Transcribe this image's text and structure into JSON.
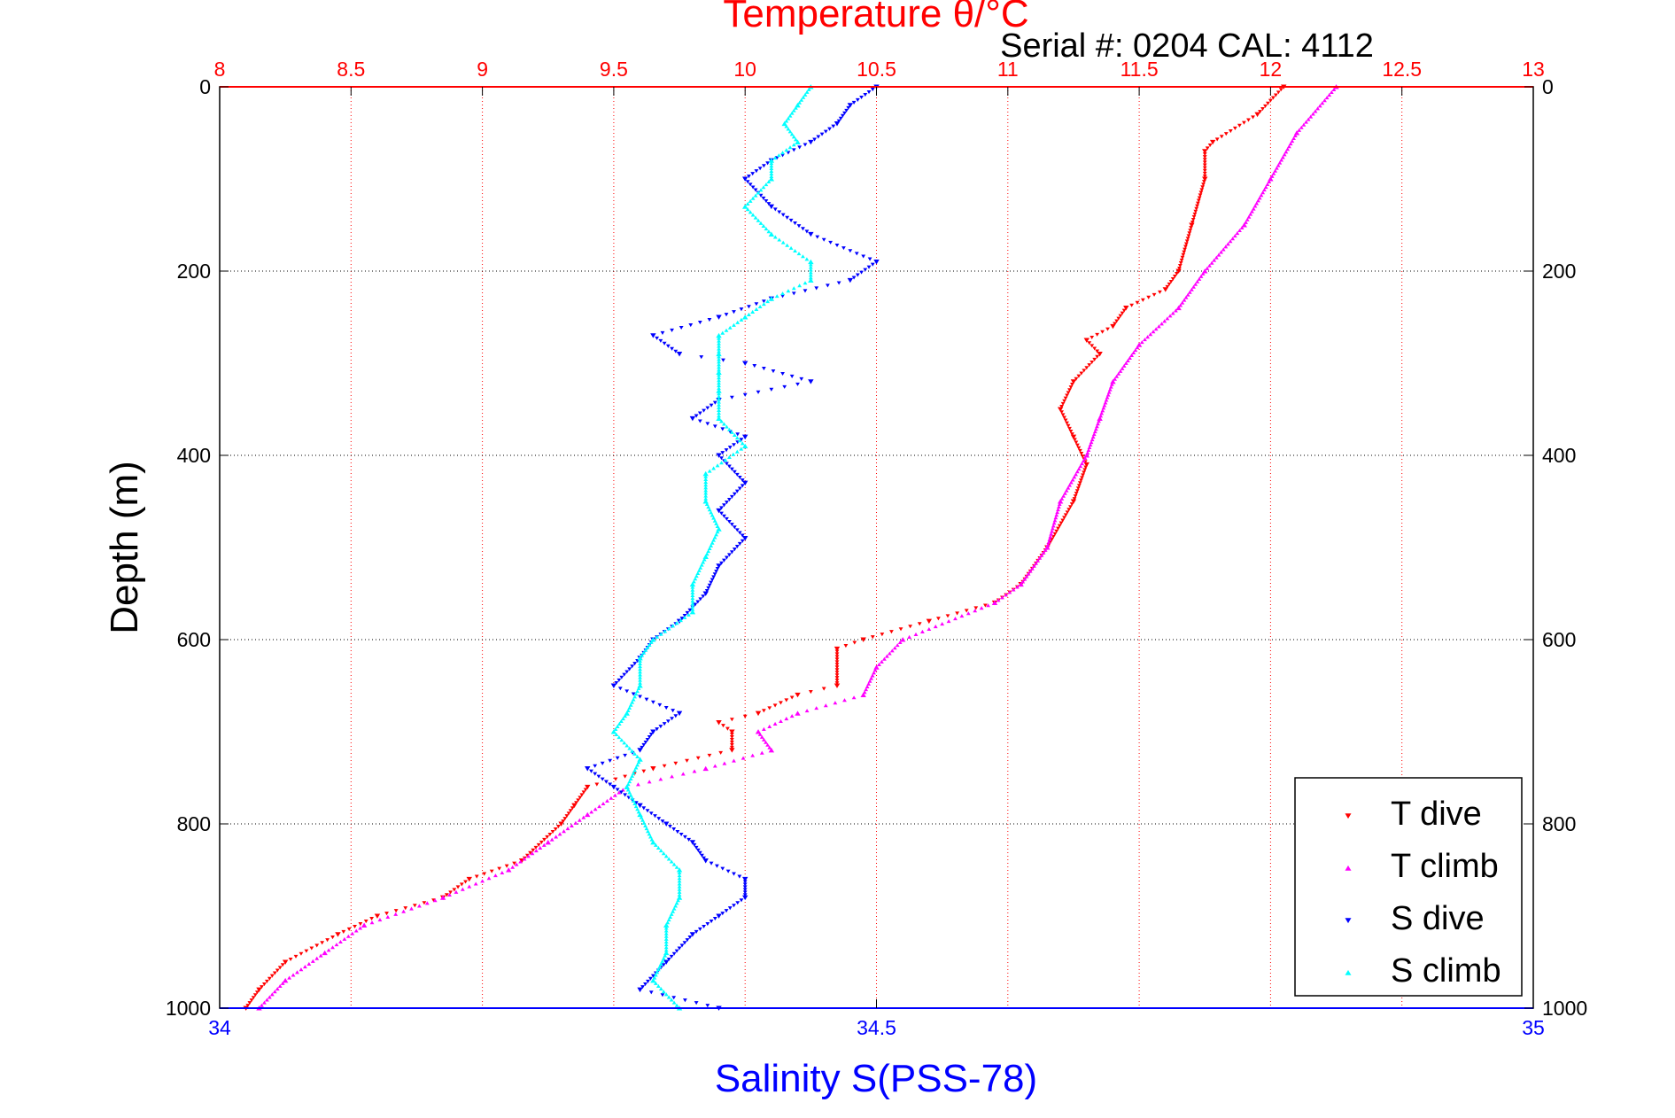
{
  "chart_data": {
    "type": "scatter",
    "title": "Temperature θ/°C",
    "subtitle": "Serial #: 0204  CAL: 4112",
    "ylabel": "Depth (m)",
    "xlabel": "Salinity S(PSS-78)",
    "top_axis": {
      "label": "Temperature θ/°C",
      "lim": [
        8,
        13
      ],
      "ticks": [
        "8",
        "8.5",
        "9",
        "9.5",
        "10",
        "10.5",
        "11",
        "11.5",
        "12",
        "12.5",
        "13"
      ],
      "color": "#ff0000"
    },
    "bottom_axis": {
      "label": "Salinity S(PSS-78)",
      "lim": [
        34,
        35
      ],
      "ticks": [
        "34",
        "34.5",
        "35"
      ],
      "color": "#0000ff"
    },
    "y_axis": {
      "lim": [
        0,
        1000
      ],
      "reversed": true,
      "left_ticks": [
        "0",
        "200",
        "400",
        "600",
        "800",
        "1000"
      ],
      "right_ticks": [
        "0",
        "200",
        "400",
        "600",
        "800",
        "1000"
      ]
    },
    "grid": true,
    "legend": {
      "placement": "bottom-right",
      "entries": [
        "T dive",
        "T climb",
        "S dive",
        "S climb"
      ]
    },
    "series": [
      {
        "name": "T dive",
        "axis": "temperature",
        "color": "#ff0000",
        "marker": "down-triangle",
        "points": [
          [
            0,
            12.05
          ],
          [
            30,
            11.95
          ],
          [
            60,
            11.78
          ],
          [
            70,
            11.75
          ],
          [
            100,
            11.75
          ],
          [
            150,
            11.7
          ],
          [
            200,
            11.65
          ],
          [
            220,
            11.6
          ],
          [
            240,
            11.45
          ],
          [
            260,
            11.4
          ],
          [
            275,
            11.3
          ],
          [
            290,
            11.35
          ],
          [
            320,
            11.25
          ],
          [
            350,
            11.2
          ],
          [
            380,
            11.25
          ],
          [
            410,
            11.3
          ],
          [
            450,
            11.25
          ],
          [
            500,
            11.15
          ],
          [
            540,
            11.05
          ],
          [
            560,
            10.95
          ],
          [
            580,
            10.7
          ],
          [
            600,
            10.45
          ],
          [
            610,
            10.35
          ],
          [
            650,
            10.35
          ],
          [
            660,
            10.2
          ],
          [
            680,
            10.05
          ],
          [
            690,
            9.9
          ],
          [
            700,
            9.95
          ],
          [
            720,
            9.95
          ],
          [
            740,
            9.65
          ],
          [
            760,
            9.4
          ],
          [
            780,
            9.35
          ],
          [
            800,
            9.3
          ],
          [
            840,
            9.15
          ],
          [
            860,
            8.95
          ],
          [
            880,
            8.85
          ],
          [
            900,
            8.6
          ],
          [
            920,
            8.45
          ],
          [
            950,
            8.25
          ],
          [
            980,
            8.15
          ],
          [
            1000,
            8.1
          ]
        ]
      },
      {
        "name": "T climb",
        "axis": "temperature",
        "color": "#ff00ff",
        "marker": "up-triangle",
        "points": [
          [
            0,
            12.25
          ],
          [
            50,
            12.1
          ],
          [
            100,
            12.0
          ],
          [
            150,
            11.9
          ],
          [
            200,
            11.75
          ],
          [
            240,
            11.65
          ],
          [
            280,
            11.5
          ],
          [
            320,
            11.4
          ],
          [
            360,
            11.35
          ],
          [
            400,
            11.3
          ],
          [
            450,
            11.2
          ],
          [
            500,
            11.15
          ],
          [
            540,
            11.05
          ],
          [
            560,
            10.95
          ],
          [
            600,
            10.6
          ],
          [
            630,
            10.5
          ],
          [
            660,
            10.45
          ],
          [
            680,
            10.2
          ],
          [
            700,
            10.05
          ],
          [
            720,
            10.1
          ],
          [
            740,
            9.85
          ],
          [
            760,
            9.55
          ],
          [
            790,
            9.4
          ],
          [
            820,
            9.25
          ],
          [
            850,
            9.1
          ],
          [
            880,
            8.85
          ],
          [
            910,
            8.55
          ],
          [
            940,
            8.4
          ],
          [
            970,
            8.25
          ],
          [
            1000,
            8.15
          ]
        ]
      },
      {
        "name": "S dive",
        "axis": "salinity",
        "color": "#0000ff",
        "marker": "down-triangle",
        "points": [
          [
            0,
            34.5
          ],
          [
            20,
            34.48
          ],
          [
            40,
            34.47
          ],
          [
            60,
            34.45
          ],
          [
            80,
            34.42
          ],
          [
            100,
            34.4
          ],
          [
            130,
            34.42
          ],
          [
            160,
            34.45
          ],
          [
            190,
            34.5
          ],
          [
            210,
            34.48
          ],
          [
            230,
            34.42
          ],
          [
            250,
            34.38
          ],
          [
            270,
            34.33
          ],
          [
            290,
            34.35
          ],
          [
            300,
            34.4
          ],
          [
            320,
            34.45
          ],
          [
            340,
            34.38
          ],
          [
            360,
            34.36
          ],
          [
            380,
            34.4
          ],
          [
            400,
            34.38
          ],
          [
            430,
            34.4
          ],
          [
            460,
            34.38
          ],
          [
            490,
            34.4
          ],
          [
            520,
            34.38
          ],
          [
            550,
            34.37
          ],
          [
            580,
            34.35
          ],
          [
            600,
            34.33
          ],
          [
            620,
            34.32
          ],
          [
            650,
            34.3
          ],
          [
            680,
            34.35
          ],
          [
            700,
            34.33
          ],
          [
            720,
            34.32
          ],
          [
            740,
            34.28
          ],
          [
            760,
            34.3
          ],
          [
            780,
            34.32
          ],
          [
            800,
            34.34
          ],
          [
            820,
            34.36
          ],
          [
            840,
            34.37
          ],
          [
            860,
            34.4
          ],
          [
            880,
            34.4
          ],
          [
            900,
            34.38
          ],
          [
            920,
            34.36
          ],
          [
            950,
            34.34
          ],
          [
            980,
            34.32
          ],
          [
            1000,
            34.38
          ]
        ]
      },
      {
        "name": "S climb",
        "axis": "salinity",
        "color": "#00ffff",
        "marker": "up-triangle",
        "points": [
          [
            0,
            34.45
          ],
          [
            20,
            34.44
          ],
          [
            40,
            34.43
          ],
          [
            60,
            34.44
          ],
          [
            80,
            34.42
          ],
          [
            100,
            34.42
          ],
          [
            130,
            34.4
          ],
          [
            160,
            34.42
          ],
          [
            190,
            34.45
          ],
          [
            210,
            34.45
          ],
          [
            230,
            34.42
          ],
          [
            250,
            34.4
          ],
          [
            270,
            34.38
          ],
          [
            290,
            34.38
          ],
          [
            310,
            34.38
          ],
          [
            330,
            34.38
          ],
          [
            360,
            34.38
          ],
          [
            390,
            34.4
          ],
          [
            420,
            34.37
          ],
          [
            450,
            34.37
          ],
          [
            480,
            34.38
          ],
          [
            510,
            34.37
          ],
          [
            540,
            34.36
          ],
          [
            570,
            34.36
          ],
          [
            600,
            34.33
          ],
          [
            620,
            34.32
          ],
          [
            650,
            34.32
          ],
          [
            680,
            34.31
          ],
          [
            700,
            34.3
          ],
          [
            730,
            34.32
          ],
          [
            760,
            34.31
          ],
          [
            790,
            34.32
          ],
          [
            820,
            34.33
          ],
          [
            850,
            34.35
          ],
          [
            880,
            34.35
          ],
          [
            910,
            34.34
          ],
          [
            940,
            34.34
          ],
          [
            970,
            34.33
          ],
          [
            1000,
            34.35
          ]
        ]
      }
    ]
  }
}
